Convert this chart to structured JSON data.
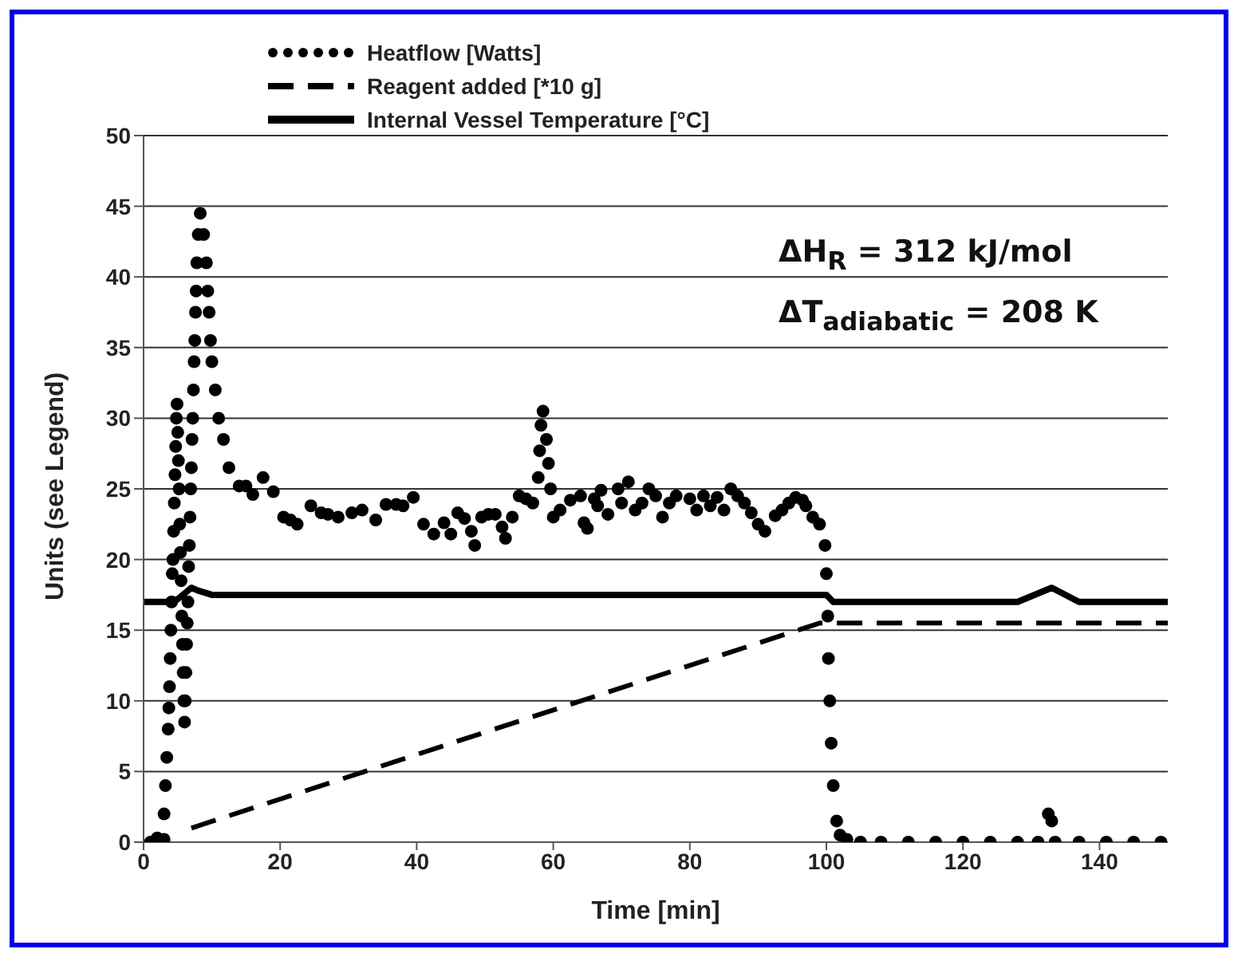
{
  "chart_data": {
    "type": "line",
    "xlabel": "Time  [min]",
    "ylabel": "Units (see Legend)",
    "xlim": [
      0,
      150
    ],
    "xticks": [
      0,
      20,
      40,
      60,
      80,
      100,
      120,
      140
    ],
    "ylim": [
      0,
      50
    ],
    "yticks": [
      0,
      5,
      10,
      15,
      20,
      25,
      30,
      35,
      40,
      45,
      50
    ],
    "grid": "y",
    "legend": "top",
    "annotations": [
      "ΔH$_{R}$ =  312 kJ/mol",
      "ΔT$_{adiabatic}$ =  208 K"
    ],
    "series": [
      {
        "name": "Heatflow [Watts]",
        "type": "scatter",
        "marker": "circle",
        "color": "#000000",
        "x": [
          1,
          2,
          3,
          3,
          3.2,
          3.4,
          3.6,
          3.7,
          3.8,
          3.9,
          4,
          4.1,
          4.2,
          4.3,
          4.4,
          4.5,
          4.6,
          4.7,
          4.8,
          4.9,
          5,
          5.1,
          5.2,
          5.3,
          5.4,
          5.5,
          5.6,
          5.7,
          5.8,
          5.9,
          6,
          6.1,
          6.2,
          6.3,
          6.4,
          6.5,
          6.6,
          6.7,
          6.8,
          6.9,
          7,
          7.1,
          7.2,
          7.3,
          7.4,
          7.5,
          7.6,
          7.7,
          7.8,
          8,
          8.3,
          8.8,
          9.2,
          9.4,
          9.6,
          9.8,
          10,
          10.5,
          11,
          11.7,
          12.5,
          14,
          15,
          16,
          17.5,
          19,
          20.5,
          21.5,
          22.5,
          24.5,
          26,
          27,
          28.5,
          30.5,
          32,
          34,
          35.5,
          37,
          38,
          39.5,
          41,
          42.5,
          44,
          45,
          46,
          47,
          48,
          48.5,
          49.5,
          50.5,
          51.5,
          52.5,
          53,
          54,
          55,
          56,
          57,
          57.8,
          58,
          58.2,
          58.5,
          59,
          59.3,
          59.6,
          60,
          61,
          62.5,
          64,
          64.5,
          65,
          66,
          66.5,
          67,
          68,
          69.5,
          70,
          71,
          72,
          73,
          74,
          75,
          76,
          77,
          78,
          80,
          81,
          82,
          83,
          84,
          85,
          86,
          87,
          88,
          89,
          90,
          91,
          92.5,
          93.5,
          94.5,
          95.5,
          96.5,
          97,
          98,
          99,
          99.8,
          100,
          100.2,
          100.3,
          100.5,
          100.7,
          101,
          101.5,
          102,
          103,
          105,
          108,
          112,
          116,
          120,
          124,
          128,
          131,
          132.5,
          133,
          133.5,
          137,
          141,
          145,
          149
        ],
        "values": [
          0,
          0.3,
          0.2,
          2,
          4,
          6,
          8,
          9.5,
          11,
          13,
          15,
          17,
          19,
          20,
          22,
          24,
          26,
          28,
          30,
          31,
          29,
          27,
          25,
          22.5,
          20.5,
          18.5,
          16,
          14,
          12,
          10,
          8.5,
          10,
          12,
          14,
          15.5,
          17,
          19.5,
          21,
          23,
          25,
          26.5,
          28.5,
          30,
          32,
          34,
          35.5,
          37.5,
          39,
          41,
          43,
          44.5,
          43,
          41,
          39,
          37.5,
          35.5,
          34,
          32,
          30,
          28.5,
          26.5,
          25.2,
          25.2,
          24.6,
          25.8,
          24.8,
          23,
          22.8,
          22.5,
          23.8,
          23.3,
          23.2,
          23,
          23.3,
          23.5,
          22.8,
          23.9,
          23.9,
          23.8,
          24.4,
          22.5,
          21.8,
          22.6,
          21.8,
          23.3,
          22.9,
          22,
          21,
          23,
          23.2,
          23.2,
          22.3,
          21.5,
          23,
          24.5,
          24.3,
          24,
          25.8,
          27.7,
          29.5,
          30.5,
          28.5,
          26.8,
          25,
          23,
          23.5,
          24.2,
          24.5,
          22.6,
          22.2,
          24.3,
          23.8,
          24.9,
          23.2,
          25,
          24,
          25.5,
          23.5,
          24,
          25,
          24.5,
          23,
          24,
          24.5,
          24.3,
          23.5,
          24.5,
          23.8,
          24.4,
          23.5,
          25,
          24.5,
          24,
          23.3,
          22.5,
          22,
          23.1,
          23.5,
          24,
          24.4,
          24.2,
          23.8,
          23,
          22.5,
          21,
          19,
          16,
          13,
          10,
          7,
          4,
          1.5,
          0.5,
          0.2,
          0,
          0,
          0,
          0,
          0,
          0,
          0,
          0,
          2,
          1.5,
          0,
          0,
          0,
          0,
          0
        ]
      },
      {
        "name": "Reagent added [*10 g]",
        "line_style": "dashed",
        "color": "#000000",
        "x": [
          7,
          99,
          101,
          150
        ],
        "values": [
          1,
          15.5,
          15.5,
          15.5
        ]
      },
      {
        "name": "Internal Vessel Temperature [°C]",
        "line_style": "solid",
        "color": "#000000",
        "x": [
          0,
          4,
          5,
          7,
          8,
          10,
          100,
          101,
          128,
          133,
          137,
          150
        ],
        "values": [
          17,
          17,
          17.2,
          18,
          17.8,
          17.5,
          17.5,
          17,
          17,
          18,
          17,
          17
        ]
      }
    ]
  }
}
